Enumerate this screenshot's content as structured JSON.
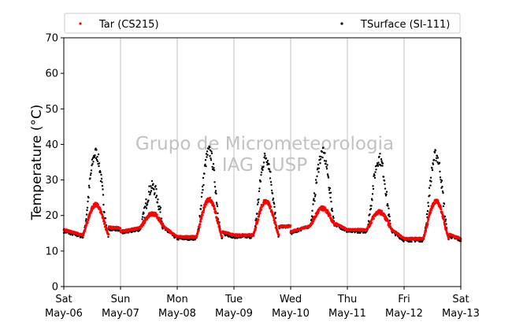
{
  "chart_data": {
    "type": "scatter",
    "title": "",
    "xlabel": "",
    "ylabel": "Temperature (°C)",
    "ylim": [
      0,
      70
    ],
    "yticks": [
      0,
      10,
      20,
      30,
      40,
      50,
      60,
      70
    ],
    "xlim_days": [
      0,
      7
    ],
    "xticks": [
      {
        "line1": "Sat",
        "line2": "May-06"
      },
      {
        "line1": "Sun",
        "line2": "May-07"
      },
      {
        "line1": "Mon",
        "line2": "May-08"
      },
      {
        "line1": "Tue",
        "line2": "May-09"
      },
      {
        "line1": "Wed",
        "line2": "May-10"
      },
      {
        "line1": "Thu",
        "line2": "May-11"
      },
      {
        "line1": "Fri",
        "line2": "May-12"
      },
      {
        "line1": "Sat",
        "line2": "May-13"
      }
    ],
    "grid": "vertical",
    "legend_position": "top",
    "watermark": [
      "Grupo de Micrometeorologia",
      "IAG - USP"
    ],
    "series": [
      {
        "name": "Tar (CS215)",
        "color": "#ff0000",
        "daily": [
          {
            "min": 14.5,
            "max": 23.0
          },
          {
            "min": 16.5,
            "max": 20.5
          },
          {
            "min": 14.0,
            "max": 24.5
          },
          {
            "min": 14.5,
            "max": 24.0
          },
          {
            "min": 17.0,
            "max": 22.0
          },
          {
            "min": 16.0,
            "max": 21.0
          },
          {
            "min": 13.5,
            "max": 24.0
          }
        ]
      },
      {
        "name": "TSurface (SI-111)",
        "color": "#000000",
        "daily": [
          {
            "min": 14.0,
            "max": 37.5
          },
          {
            "min": 16.0,
            "max": 28.0
          },
          {
            "min": 13.5,
            "max": 38.0
          },
          {
            "min": 14.0,
            "max": 36.5
          },
          {
            "min": 17.0,
            "max": 37.5
          },
          {
            "min": 15.5,
            "max": 36.0
          },
          {
            "min": 13.0,
            "max": 37.0
          }
        ]
      }
    ]
  }
}
